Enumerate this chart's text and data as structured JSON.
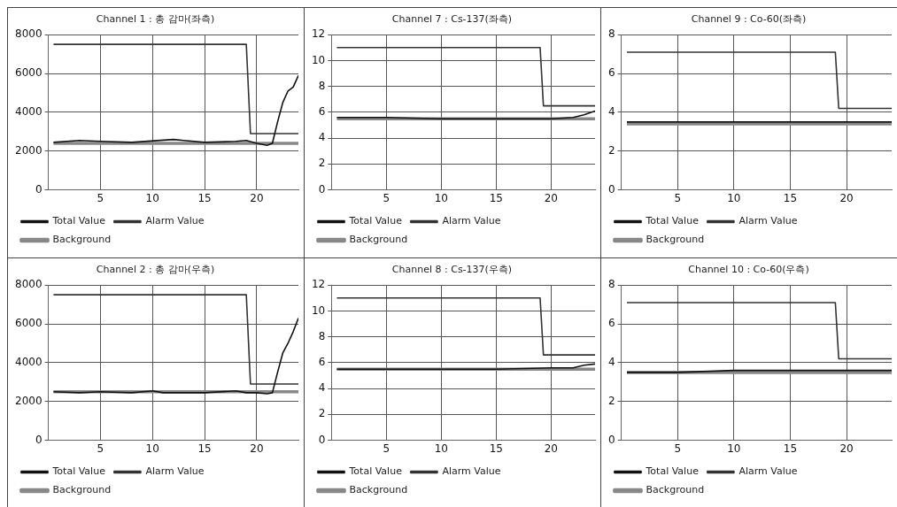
{
  "chart_data": [
    {
      "type": "line",
      "title": "Channel 1 : 총 감마(좌측)",
      "xlim": [
        0,
        24
      ],
      "xticks": [
        5,
        10,
        15,
        20
      ],
      "ylim": [
        0,
        8000
      ],
      "yticks": [
        0,
        2000,
        4000,
        6000,
        8000
      ],
      "grid": true,
      "legend": "bottom",
      "marker": "none",
      "series": [
        {
          "name": "Total Value",
          "color": "#111111",
          "x": [
            0.5,
            3,
            5,
            8,
            12,
            13,
            15,
            18,
            19,
            20,
            21,
            21.5,
            22,
            22.5,
            23,
            23.5,
            24
          ],
          "values": [
            2450,
            2550,
            2500,
            2450,
            2600,
            2550,
            2450,
            2500,
            2550,
            2400,
            2300,
            2400,
            3500,
            4500,
            5100,
            5300,
            5900
          ]
        },
        {
          "name": "Alarm Value",
          "color": "#333333",
          "x": [
            0.5,
            19,
            19.4,
            24
          ],
          "values": [
            7500,
            7500,
            2900,
            2900
          ]
        },
        {
          "name": "Background",
          "color": "#888888",
          "x": [
            0.5,
            24
          ],
          "values": [
            2400,
            2400
          ]
        }
      ]
    },
    {
      "type": "line",
      "title": "Channel 7 : Cs-137(좌측)",
      "xlim": [
        0,
        24
      ],
      "xticks": [
        5,
        10,
        15,
        20
      ],
      "ylim": [
        0,
        12
      ],
      "yticks": [
        0,
        2,
        4,
        6,
        8,
        10,
        12
      ],
      "grid": true,
      "legend": "bottom",
      "marker": "none",
      "series": [
        {
          "name": "Total Value",
          "color": "#111111",
          "x": [
            0.5,
            5,
            10,
            15,
            20,
            22,
            23,
            24
          ],
          "values": [
            5.6,
            5.6,
            5.5,
            5.5,
            5.5,
            5.6,
            5.8,
            6.1
          ]
        },
        {
          "name": "Alarm Value",
          "color": "#333333",
          "x": [
            0.5,
            19,
            19.3,
            24
          ],
          "values": [
            11,
            11,
            6.5,
            6.5
          ]
        },
        {
          "name": "Background",
          "color": "#888888",
          "x": [
            0.5,
            24
          ],
          "values": [
            5.5,
            5.5
          ]
        }
      ]
    },
    {
      "type": "line",
      "title": "Channel 9 : Co-60(좌측)",
      "xlim": [
        0,
        24
      ],
      "xticks": [
        5,
        10,
        15,
        20
      ],
      "ylim": [
        0,
        8
      ],
      "yticks": [
        0,
        2,
        4,
        6,
        8
      ],
      "grid": true,
      "legend": "bottom",
      "marker": "none",
      "series": [
        {
          "name": "Total Value",
          "color": "#111111",
          "x": [
            0.5,
            5,
            10,
            15,
            20,
            24
          ],
          "values": [
            3.5,
            3.5,
            3.5,
            3.5,
            3.5,
            3.5
          ]
        },
        {
          "name": "Alarm Value",
          "color": "#333333",
          "x": [
            0.5,
            19,
            19.3,
            24
          ],
          "values": [
            7.1,
            7.1,
            4.2,
            4.2
          ]
        },
        {
          "name": "Background",
          "color": "#888888",
          "x": [
            0.5,
            24
          ],
          "values": [
            3.4,
            3.4
          ]
        }
      ]
    },
    {
      "type": "line",
      "title": "Channel 2 : 총 감마(우측)",
      "xlim": [
        0,
        24
      ],
      "xticks": [
        5,
        10,
        15,
        20
      ],
      "ylim": [
        0,
        8000
      ],
      "yticks": [
        0,
        2000,
        4000,
        6000,
        8000
      ],
      "grid": true,
      "legend": "bottom",
      "marker": "none",
      "series": [
        {
          "name": "Total Value",
          "color": "#111111",
          "x": [
            0.5,
            3,
            5,
            8,
            10,
            11,
            15,
            18,
            19,
            20,
            21,
            21.5,
            22,
            22.5,
            23,
            23.5,
            24
          ],
          "values": [
            2500,
            2450,
            2500,
            2450,
            2550,
            2450,
            2450,
            2550,
            2450,
            2450,
            2400,
            2450,
            3500,
            4500,
            5000,
            5600,
            6300
          ]
        },
        {
          "name": "Alarm Value",
          "color": "#333333",
          "x": [
            0.5,
            19,
            19.4,
            24
          ],
          "values": [
            7500,
            7500,
            2900,
            2900
          ]
        },
        {
          "name": "Background",
          "color": "#888888",
          "x": [
            0.5,
            24
          ],
          "values": [
            2500,
            2500
          ]
        }
      ]
    },
    {
      "type": "line",
      "title": "Channel 8 : Cs-137(우측)",
      "xlim": [
        0,
        24
      ],
      "xticks": [
        5,
        10,
        15,
        20
      ],
      "ylim": [
        0,
        12
      ],
      "yticks": [
        0,
        2,
        4,
        6,
        8,
        10,
        12
      ],
      "grid": true,
      "legend": "bottom",
      "marker": "none",
      "series": [
        {
          "name": "Total Value",
          "color": "#111111",
          "x": [
            0.5,
            5,
            10,
            15,
            20,
            22,
            23,
            24
          ],
          "values": [
            5.5,
            5.5,
            5.5,
            5.5,
            5.6,
            5.6,
            5.8,
            5.9
          ]
        },
        {
          "name": "Alarm Value",
          "color": "#333333",
          "x": [
            0.5,
            19,
            19.3,
            24
          ],
          "values": [
            11,
            11,
            6.6,
            6.6
          ]
        },
        {
          "name": "Background",
          "color": "#888888",
          "x": [
            0.5,
            24
          ],
          "values": [
            5.5,
            5.5
          ]
        }
      ]
    },
    {
      "type": "line",
      "title": "Channel 10 : Co-60(우측)",
      "xlim": [
        0,
        24
      ],
      "xticks": [
        5,
        10,
        15,
        20
      ],
      "ylim": [
        0,
        8
      ],
      "yticks": [
        0,
        2,
        4,
        6,
        8
      ],
      "grid": true,
      "legend": "bottom",
      "marker": "none",
      "series": [
        {
          "name": "Total Value",
          "color": "#111111",
          "x": [
            0.5,
            5,
            10,
            15,
            20,
            24
          ],
          "values": [
            3.5,
            3.5,
            3.6,
            3.6,
            3.6,
            3.6
          ]
        },
        {
          "name": "Alarm Value",
          "color": "#333333",
          "x": [
            0.5,
            19,
            19.3,
            24
          ],
          "values": [
            7.1,
            7.1,
            4.2,
            4.2
          ]
        },
        {
          "name": "Background",
          "color": "#888888",
          "x": [
            0.5,
            24
          ],
          "values": [
            3.5,
            3.5
          ]
        }
      ]
    }
  ]
}
